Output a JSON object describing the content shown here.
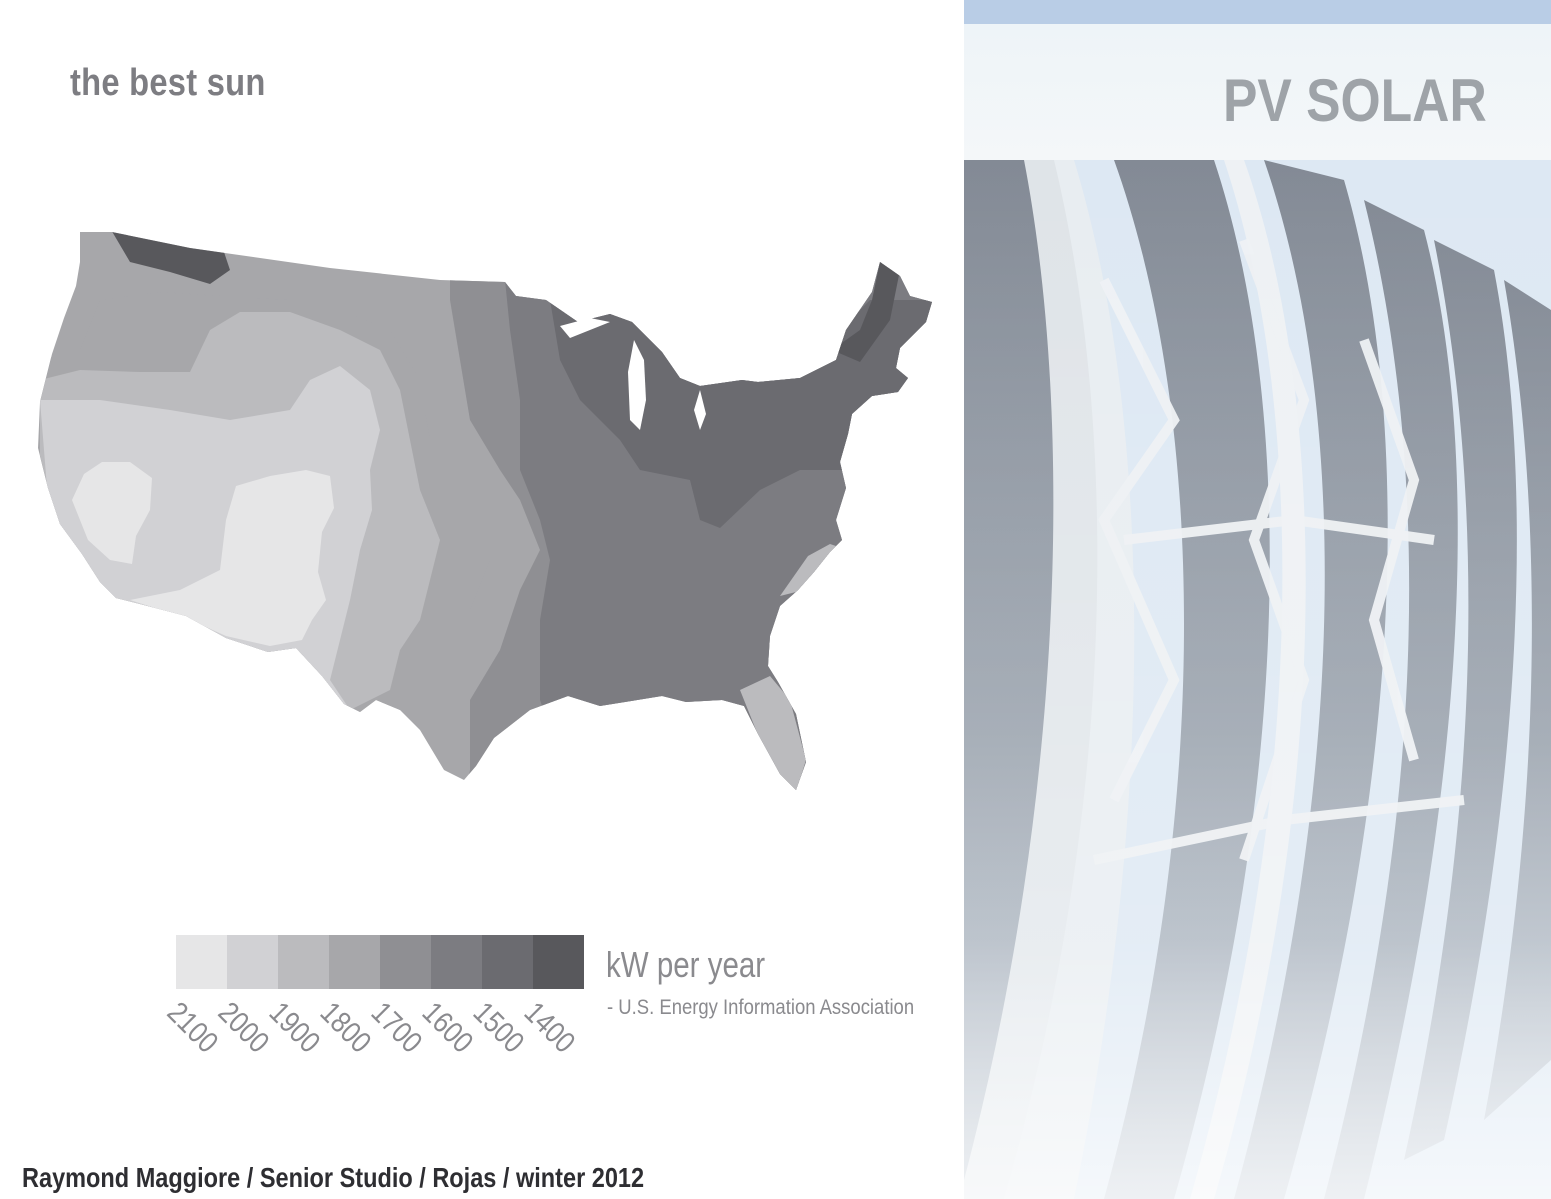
{
  "page": {
    "title": "the best sun",
    "footer": "Raymond Maggiore / Senior Studio / Rojas / winter 2012"
  },
  "map": {
    "subject": "solar resource map of the contiguous United States",
    "legend": {
      "unit": "kW per year",
      "source": "- U.S. Energy Information Association",
      "classes": [
        {
          "label": "2100",
          "color": "#e6e6e7"
        },
        {
          "label": "2000",
          "color": "#d1d1d4"
        },
        {
          "label": "1900",
          "color": "#bbbbbe"
        },
        {
          "label": "1800",
          "color": "#a7a7aa"
        },
        {
          "label": "1700",
          "color": "#8f8f93"
        },
        {
          "label": "1600",
          "color": "#7c7c81"
        },
        {
          "label": "1500",
          "color": "#6b6b70"
        },
        {
          "label": "1400",
          "color": "#58585c"
        }
      ]
    }
  },
  "panel": {
    "title": "PV SOLAR",
    "photo_subject": "curved photovoltaic panel ribs on white steel trusses against sky",
    "colors": {
      "sky": "#dbe7f3",
      "strip": "#b9cde6",
      "panel": "#8d96a2",
      "frame": "#e8ecf0"
    }
  }
}
